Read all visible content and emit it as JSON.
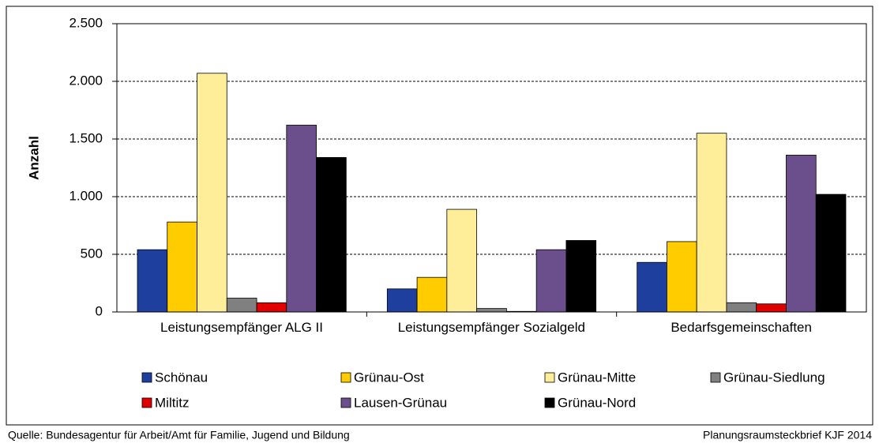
{
  "chart_data": {
    "type": "bar",
    "y_label": "Anzahl",
    "categories": [
      "Leistungsempfänger ALG II",
      "Leistungsempfänger Sozialgeld",
      "Bedarfsgemeinschaften"
    ],
    "series": [
      {
        "name": "Schönau",
        "color": "#1f3f9f",
        "values": [
          540,
          200,
          430
        ]
      },
      {
        "name": "Grünau-Ost",
        "color": "#ffcc00",
        "values": [
          780,
          300,
          610
        ]
      },
      {
        "name": "Grünau-Mitte",
        "color": "#ffee99",
        "values": [
          2070,
          890,
          1550
        ]
      },
      {
        "name": "Grünau-Siedlung",
        "color": "#808080",
        "values": [
          120,
          30,
          80
        ]
      },
      {
        "name": "Miltitz",
        "color": "#e00000",
        "values": [
          80,
          5,
          70
        ]
      },
      {
        "name": "Lausen-Grünau",
        "color": "#6b4f8c",
        "values": [
          1620,
          540,
          1360
        ]
      },
      {
        "name": "Grünau-Nord",
        "color": "#000000",
        "values": [
          1340,
          620,
          1020
        ]
      }
    ],
    "ylim": [
      0,
      2500
    ],
    "yticks": [
      0,
      500,
      {
        "value": 1000,
        "label": "1.000"
      },
      {
        "value": 1500,
        "label": "1.500"
      },
      {
        "value": 2000,
        "label": "2.000"
      },
      {
        "value": 2500,
        "label": "2.500"
      }
    ],
    "grid": true,
    "source": "Quelle: Bundesagentur für Arbeit/Amt für Familie, Jugend und Bildung",
    "note": "Planungsraumsteckbrief KJF 2014"
  }
}
